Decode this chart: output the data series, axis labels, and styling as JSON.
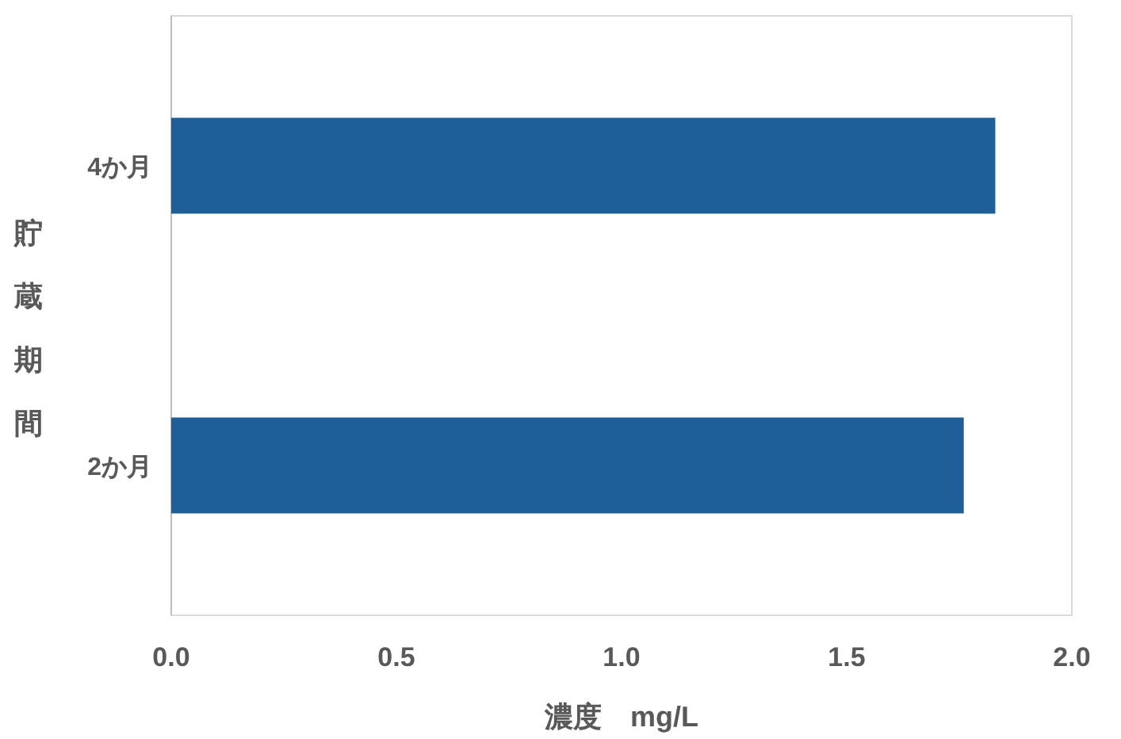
{
  "chart_data": {
    "type": "bar",
    "orientation": "horizontal",
    "categories": [
      "4か月",
      "2か月"
    ],
    "series": [
      {
        "color": "#1f5f99",
        "values": [
          1.83,
          1.76
        ]
      }
    ],
    "xlim": [
      0,
      2.0
    ],
    "xticks": [
      {
        "value": 0,
        "label": "0.0"
      },
      {
        "value": 0.5,
        "label": "0.5"
      },
      {
        "value": 1.0,
        "label": "1.0"
      },
      {
        "value": 1.5,
        "label": "1.5"
      },
      {
        "value": 2.0,
        "label": "2.0"
      }
    ],
    "xlabel": "濃度　mg/L",
    "ylabel": "貯蔵期間",
    "grid": false
  }
}
